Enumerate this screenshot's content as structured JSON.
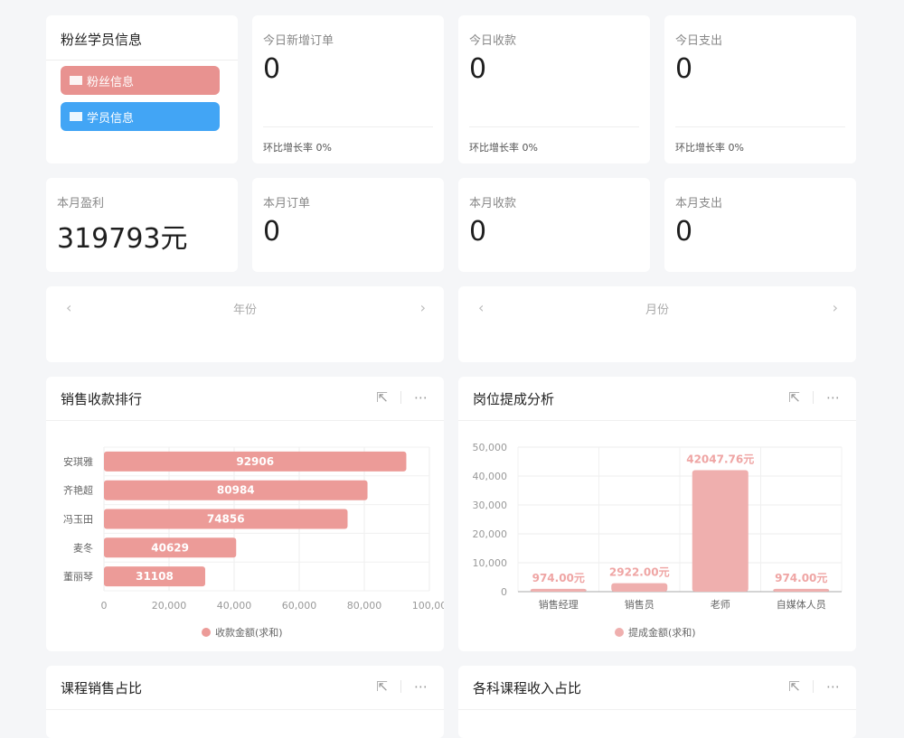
{
  "fans_card": {
    "title": "粉丝学员信息",
    "buttons": [
      {
        "label": "粉丝信息",
        "color": "#e89290"
      },
      {
        "label": "学员信息",
        "color": "#42a5f5"
      }
    ]
  },
  "today": [
    {
      "label": "今日新增订单",
      "value": "0",
      "rate": "环比增长率 0%"
    },
    {
      "label": "今日收款",
      "value": "0",
      "rate": "环比增长率 0%"
    },
    {
      "label": "今日支出",
      "value": "0",
      "rate": "环比增长率 0%"
    }
  ],
  "month": [
    {
      "label": "本月盈利",
      "value": "319793元"
    },
    {
      "label": "本月订单",
      "value": "0"
    },
    {
      "label": "本月收款",
      "value": "0"
    },
    {
      "label": "本月支出",
      "value": "0"
    }
  ],
  "pickers": {
    "year": "年份",
    "month": "月份",
    "prev": "‹",
    "next": "›"
  },
  "panels": {
    "sales_rank": "销售收款排行",
    "commission": "岗位提成分析",
    "course_sales": "课程销售占比",
    "course_income": "各科课程收入占比",
    "icon_open": "external-link-icon",
    "icon_more": "more-icon"
  },
  "chart_data": [
    {
      "type": "bar",
      "orientation": "horizontal",
      "categories": [
        "安琪雅",
        "齐艳超",
        "冯玉田",
        "麦冬",
        "董丽琴"
      ],
      "series": [
        {
          "name": "收款金额(求和)",
          "values": [
            92906,
            80984,
            74856,
            40629,
            31108
          ],
          "color": "#ec9b98"
        }
      ],
      "xlim": [
        0,
        100000
      ],
      "xticks": [
        "0",
        "20,000",
        "40,000",
        "60,000",
        "80,000",
        "100,00"
      ],
      "grid": true,
      "legend": "bottom"
    },
    {
      "type": "bar",
      "categories": [
        "销售经理",
        "销售员",
        "老师",
        "自媒体人员"
      ],
      "series": [
        {
          "name": "提成金额(求和)",
          "values": [
            974.0,
            2922.0,
            42047.76,
            974.0
          ],
          "labels": [
            "974.00元",
            "2922.00元",
            "42047.76元",
            "974.00元"
          ],
          "color": "#efafae"
        }
      ],
      "ylim": [
        0,
        50000
      ],
      "yticks": [
        "0",
        "10,000",
        "20,000",
        "30,000",
        "40,000",
        "50,000"
      ],
      "grid": true,
      "legend": "bottom"
    }
  ]
}
